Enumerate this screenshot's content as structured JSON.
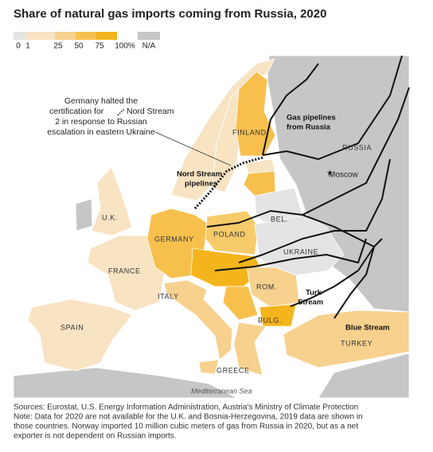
{
  "header": {
    "title": "Share of natural gas imports coming from Russia, 2020"
  },
  "legend": {
    "colors": [
      "#e4e4e4",
      "#f8e3c3",
      "#f7d18e",
      "#f7c04d",
      "#f4b41c"
    ],
    "ticks": [
      "0",
      "1",
      "25",
      "50",
      "75",
      "100%"
    ],
    "na": {
      "label": "N/A",
      "color": "#c6c6c6"
    }
  },
  "map": {
    "labels": {
      "finland": "FINLAND",
      "russia": "RUSSIA",
      "moscow": "Moscow",
      "bel": "BEL.",
      "uk": "U.K.",
      "germany": "GERMANY",
      "poland": "POLAND",
      "ukraine": "UKRAINE",
      "france": "FRANCE",
      "rom": "ROM.",
      "italy": "ITALY",
      "bulg": "BULG.",
      "spain": "SPAIN",
      "turkey": "TURKEY",
      "greece": "GREECE",
      "sea": "Mediterranean Sea"
    },
    "pipelines": {
      "gas_from_russia": [
        "Gas pipelines",
        "from Russia"
      ],
      "nord_stream": [
        "Nord Stream",
        "pipelines"
      ],
      "turk_stream": [
        "Turk-",
        "Stream"
      ],
      "blue_stream": "Blue Stream"
    },
    "annotation": [
      "Germany halted the",
      "certification for",
      "Nord Stream",
      "2 in response to Russian",
      "escalation in eastern Ukraine"
    ]
  },
  "footer": {
    "sources": "Sources: Eurostat, U.S. Energy Information Administration, Austria's Ministry of Climate Protection",
    "note": [
      "Note: Data for 2020 are not available for the U.K. and Bosnia-Herzegovina, 2019 data are shown in",
      "those countries. Norway imported 10 million cubic meters of gas from Russia in 2020, but as a net",
      "exporter is not dependent on Russian imports."
    ]
  }
}
